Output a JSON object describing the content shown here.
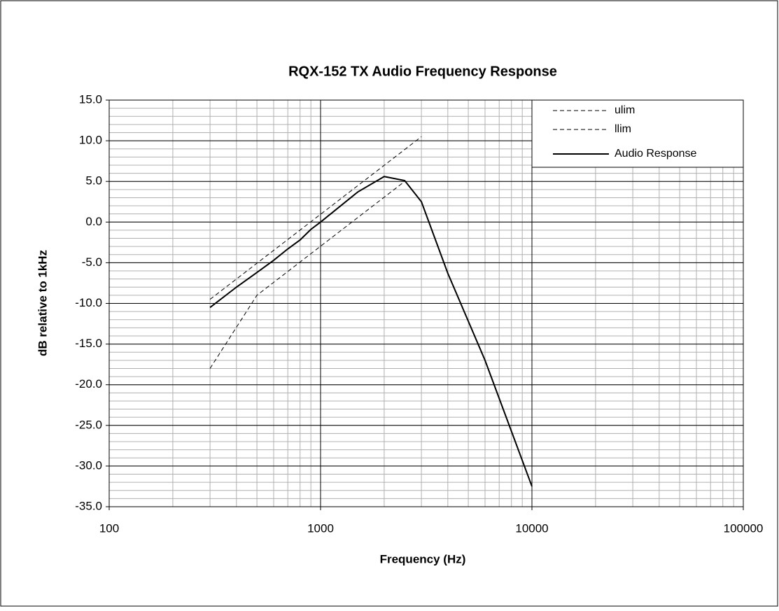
{
  "chart_data": {
    "type": "line",
    "title": "RQX-152 TX Audio Frequency Response",
    "x_label": "Frequency (Hz)",
    "y_label": "dB relative to 1kHz",
    "log_x": true,
    "grid": true,
    "minor_grid": true,
    "legend_position": "upper right",
    "xlim": [
      100,
      100000
    ],
    "xticks": [
      100,
      1000,
      10000,
      100000
    ],
    "ylim": [
      -35,
      15
    ],
    "yticks": [
      {
        "value": 15,
        "label": "15.0"
      },
      {
        "value": 10,
        "label": "10.0"
      },
      {
        "value": 5,
        "label": "5.0"
      },
      {
        "value": 0,
        "label": "0.0"
      },
      {
        "value": -5,
        "label": "-5.0"
      },
      {
        "value": -10,
        "label": "-10.0"
      },
      {
        "value": -15,
        "label": "-15.0"
      },
      {
        "value": -20,
        "label": "-20.0"
      },
      {
        "value": -25,
        "label": "-25.0"
      },
      {
        "value": -30,
        "label": "-30.0"
      },
      {
        "value": -35,
        "label": "-35.0"
      }
    ],
    "series": [
      {
        "name": "ulim",
        "color": "#000000",
        "line_style": "dashed",
        "x": [
          300,
          3000
        ],
        "values": [
          -9.5,
          10.5
        ]
      },
      {
        "name": "llim",
        "color": "#000000",
        "line_style": "dashed",
        "x": [
          300,
          500,
          2500
        ],
        "values": [
          -18,
          -9,
          5
        ]
      },
      {
        "name": "Audio Response",
        "color": "#000000",
        "line_style": "solid",
        "x": [
          300,
          400,
          500,
          600,
          700,
          800,
          900,
          1000,
          1500,
          2000,
          2500,
          3000,
          4000,
          6000,
          10000
        ],
        "values": [
          -10.5,
          -8,
          -6.2,
          -4.7,
          -3.3,
          -2.2,
          -0.9,
          0,
          3.7,
          5.6,
          5.1,
          2.5,
          -6.3,
          -17,
          -32.5
        ]
      }
    ]
  }
}
